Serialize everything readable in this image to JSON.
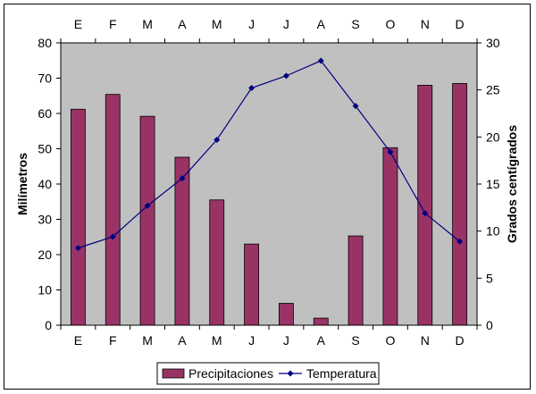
{
  "chart_data": {
    "type": "bar+line",
    "categories": [
      "E",
      "F",
      "M",
      "A",
      "M",
      "J",
      "J",
      "A",
      "S",
      "O",
      "N",
      "D"
    ],
    "series": [
      {
        "name": "Precipitaciones",
        "type": "bar",
        "axis": "left",
        "values": [
          61.2,
          65.4,
          59.2,
          47.6,
          35.5,
          23.0,
          6.2,
          2.0,
          25.3,
          50.3,
          68.0,
          68.5
        ]
      },
      {
        "name": "Temperatura",
        "type": "line",
        "axis": "right",
        "values": [
          8.2,
          9.4,
          12.7,
          15.6,
          19.7,
          25.2,
          26.5,
          28.1,
          23.3,
          18.4,
          11.9,
          8.9
        ]
      }
    ],
    "ylabel": "Milímetros",
    "y2label": "Grados centígrados",
    "ylim": [
      0,
      80
    ],
    "y2lim": [
      0,
      30
    ],
    "yticks": [
      0,
      10,
      20,
      30,
      40,
      50,
      60,
      70,
      80
    ],
    "y2ticks": [
      0,
      5,
      10,
      15,
      20,
      25,
      30
    ],
    "legend": {
      "position": "bottom"
    },
    "colors": {
      "bar": "#993366",
      "line": "#000080",
      "plot_background": "#c0c0c0"
    },
    "grid": false
  }
}
